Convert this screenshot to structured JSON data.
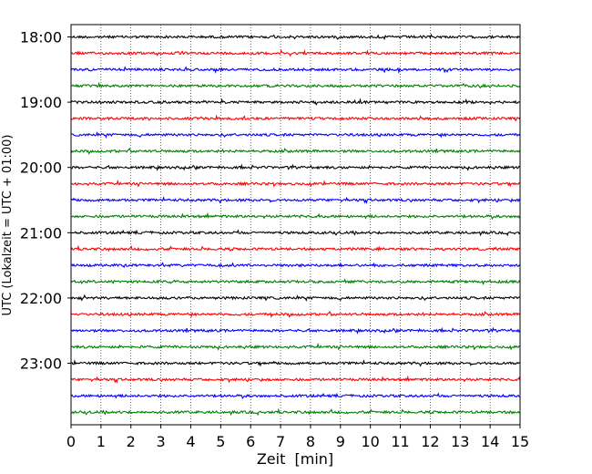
{
  "chart_data": {
    "type": "line",
    "title": "",
    "xlabel": "Zeit  [min]",
    "ylabel": "UTC (Lokalzeit = UTC + 01:00)",
    "xlim": [
      0,
      15
    ],
    "x_ticks": [
      0,
      1,
      2,
      3,
      4,
      5,
      6,
      7,
      8,
      9,
      10,
      11,
      12,
      13,
      14,
      15
    ],
    "y_ticks": [
      "18:00",
      "19:00",
      "20:00",
      "21:00",
      "22:00",
      "23:00"
    ],
    "grid": {
      "x": true,
      "style": "dotted"
    },
    "trace_interval_minutes": 15,
    "trace_start": "18:00",
    "trace_colors": [
      "#000000",
      "#ff0000",
      "#0000ff",
      "#008000"
    ],
    "traces": [
      "18:00",
      "18:15",
      "18:30",
      "18:45",
      "19:00",
      "19:15",
      "19:30",
      "19:45",
      "20:00",
      "20:15",
      "20:30",
      "20:45",
      "21:00",
      "21:15",
      "21:30",
      "21:45",
      "22:00",
      "22:15",
      "22:30",
      "22:45",
      "23:00",
      "23:15",
      "23:30",
      "23:45"
    ]
  }
}
